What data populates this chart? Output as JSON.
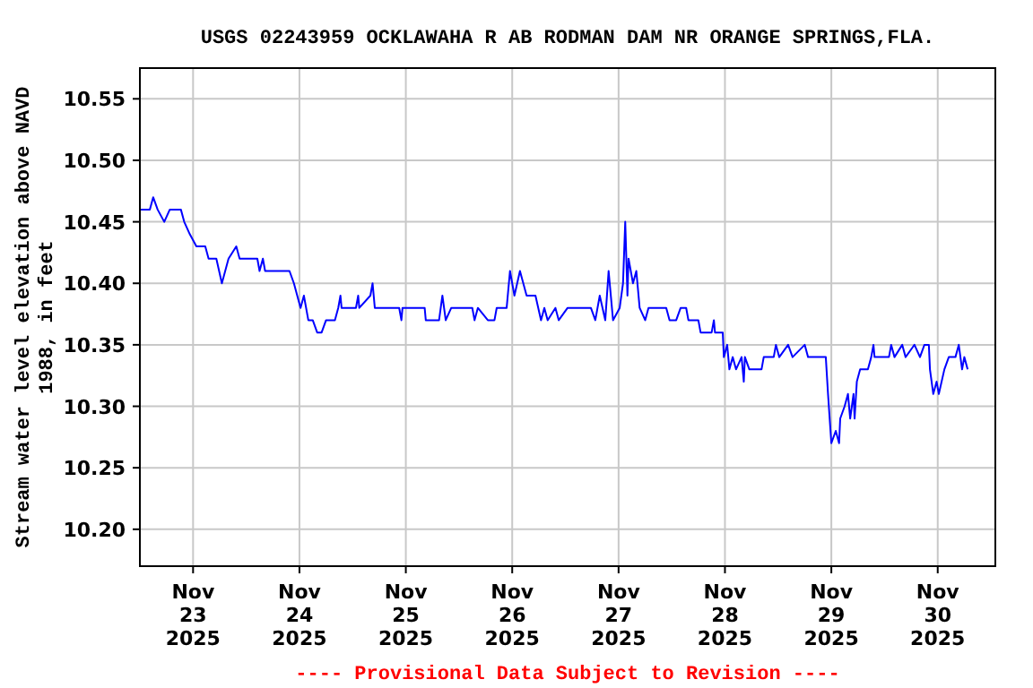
{
  "chart_data": {
    "type": "line",
    "title": "USGS 02243959 OCKLAWAHA R AB RODMAN DAM NR ORANGE SPRINGS,FLA.",
    "ylabel": "Stream water level elevation above NAVD\n1988, in feet",
    "annotations": [
      "---- Provisional Data Subject to Revision ----"
    ],
    "xlim": [
      "2025-11-22T12:00",
      "2025-11-30T13:00"
    ],
    "xticks": [
      {
        "value": "2025-11-23",
        "label": "Nov\n23\n2025"
      },
      {
        "value": "2025-11-24",
        "label": "Nov\n24\n2025"
      },
      {
        "value": "2025-11-25",
        "label": "Nov\n25\n2025"
      },
      {
        "value": "2025-11-26",
        "label": "Nov\n26\n2025"
      },
      {
        "value": "2025-11-27",
        "label": "Nov\n27\n2025"
      },
      {
        "value": "2025-11-28",
        "label": "Nov\n28\n2025"
      },
      {
        "value": "2025-11-29",
        "label": "Nov\n29\n2025"
      },
      {
        "value": "2025-11-30",
        "label": "Nov\n30\n2025"
      }
    ],
    "ylim": [
      10.17,
      10.575
    ],
    "yticks": [
      {
        "value": 10.2,
        "label": "10.20"
      },
      {
        "value": 10.25,
        "label": "10.25"
      },
      {
        "value": 10.3,
        "label": "10.30"
      },
      {
        "value": 10.35,
        "label": "10.35"
      },
      {
        "value": 10.4,
        "label": "10.40"
      },
      {
        "value": 10.45,
        "label": "10.45"
      },
      {
        "value": 10.5,
        "label": "10.50"
      },
      {
        "value": 10.55,
        "label": "10.55"
      }
    ],
    "grid": true,
    "line_style": "solid",
    "marker": "none",
    "x": [
      "2025-11-22T12:00",
      "2025-11-22T14:15",
      "2025-11-22T15:00",
      "2025-11-22T16:00",
      "2025-11-22T17:30",
      "2025-11-22T18:45",
      "2025-11-22T21:15",
      "2025-11-22T22:00",
      "2025-11-22T23:15",
      "2025-11-23T00:45",
      "2025-11-23T02:45",
      "2025-11-23T03:30",
      "2025-11-23T05:15",
      "2025-11-23T06:30",
      "2025-11-23T07:15",
      "2025-11-23T08:00",
      "2025-11-23T09:45",
      "2025-11-23T10:30",
      "2025-11-23T14:30",
      "2025-11-23T15:00",
      "2025-11-23T15:45",
      "2025-11-23T16:15",
      "2025-11-23T21:45",
      "2025-11-23T22:45",
      "2025-11-23T23:30",
      "2025-11-24T00:15",
      "2025-11-24T01:00",
      "2025-11-24T02:00",
      "2025-11-24T03:00",
      "2025-11-24T04:00",
      "2025-11-24T05:00",
      "2025-11-24T06:00",
      "2025-11-24T08:00",
      "2025-11-24T08:45",
      "2025-11-24T09:15",
      "2025-11-24T09:30",
      "2025-11-24T12:45",
      "2025-11-24T13:15",
      "2025-11-24T13:30",
      "2025-11-24T16:00",
      "2025-11-24T16:30",
      "2025-11-24T17:00",
      "2025-11-24T22:30",
      "2025-11-24T23:00",
      "2025-11-24T23:15",
      "2025-11-25T04:15",
      "2025-11-25T04:30",
      "2025-11-25T07:30",
      "2025-11-25T08:15",
      "2025-11-25T09:00",
      "2025-11-25T10:15",
      "2025-11-25T15:00",
      "2025-11-25T15:30",
      "2025-11-25T16:15",
      "2025-11-25T18:30",
      "2025-11-25T20:00",
      "2025-11-25T20:30",
      "2025-11-25T22:45",
      "2025-11-25T23:30",
      "2025-11-26T00:30",
      "2025-11-26T01:45",
      "2025-11-26T02:30",
      "2025-11-26T03:15",
      "2025-11-26T05:15",
      "2025-11-26T06:30",
      "2025-11-26T07:15",
      "2025-11-26T08:00",
      "2025-11-26T09:45",
      "2025-11-26T10:30",
      "2025-11-26T12:30",
      "2025-11-26T17:45",
      "2025-11-26T18:45",
      "2025-11-26T19:45",
      "2025-11-26T21:00",
      "2025-11-26T21:45",
      "2025-11-26T22:45",
      "2025-11-27T00:15",
      "2025-11-27T01:00",
      "2025-11-27T01:30",
      "2025-11-27T02:00",
      "2025-11-27T02:15",
      "2025-11-27T03:15",
      "2025-11-27T04:00",
      "2025-11-27T04:45",
      "2025-11-27T06:00",
      "2025-11-27T06:45",
      "2025-11-27T10:45",
      "2025-11-27T11:30",
      "2025-11-27T13:00",
      "2025-11-27T14:00",
      "2025-11-27T15:15",
      "2025-11-27T15:45",
      "2025-11-27T18:00",
      "2025-11-27T18:30",
      "2025-11-27T21:00",
      "2025-11-27T21:30",
      "2025-11-27T21:45",
      "2025-11-27T23:30",
      "2025-11-27T23:45",
      "2025-11-28T00:30",
      "2025-11-28T01:00",
      "2025-11-28T01:45",
      "2025-11-28T02:30",
      "2025-11-28T03:45",
      "2025-11-28T04:15",
      "2025-11-28T04:30",
      "2025-11-28T05:30",
      "2025-11-28T08:15",
      "2025-11-28T08:45",
      "2025-11-28T11:00",
      "2025-11-28T11:30",
      "2025-11-28T12:15",
      "2025-11-28T14:15",
      "2025-11-28T15:15",
      "2025-11-28T18:00",
      "2025-11-28T18:45",
      "2025-11-28T22:45",
      "2025-11-28T23:15",
      "2025-11-29T00:00",
      "2025-11-29T01:00",
      "2025-11-29T01:45",
      "2025-11-29T02:00",
      "2025-11-29T03:00",
      "2025-11-29T03:45",
      "2025-11-29T04:15",
      "2025-11-29T05:00",
      "2025-11-29T05:15",
      "2025-11-29T05:45",
      "2025-11-29T06:30",
      "2025-11-29T08:15",
      "2025-11-29T09:00",
      "2025-11-29T09:30",
      "2025-11-29T09:45",
      "2025-11-29T13:00",
      "2025-11-29T13:30",
      "2025-11-29T14:15",
      "2025-11-29T16:00",
      "2025-11-29T16:45",
      "2025-11-29T18:45",
      "2025-11-29T20:00",
      "2025-11-29T21:00",
      "2025-11-29T22:00",
      "2025-11-29T22:15",
      "2025-11-29T23:00",
      "2025-11-29T23:45",
      "2025-11-30T00:15",
      "2025-11-30T01:30",
      "2025-11-30T02:30",
      "2025-11-30T04:00",
      "2025-11-30T04:45",
      "2025-11-30T05:30",
      "2025-11-30T06:00",
      "2025-11-30T06:45"
    ],
    "series": [
      {
        "color": "#0000ff",
        "values": [
          10.46,
          10.46,
          10.47,
          10.46,
          10.45,
          10.46,
          10.46,
          10.45,
          10.44,
          10.43,
          10.43,
          10.42,
          10.42,
          10.4,
          10.41,
          10.42,
          10.43,
          10.42,
          10.42,
          10.41,
          10.42,
          10.41,
          10.41,
          10.4,
          10.39,
          10.38,
          10.39,
          10.37,
          10.37,
          10.36,
          10.36,
          10.37,
          10.37,
          10.38,
          10.39,
          10.38,
          10.38,
          10.39,
          10.38,
          10.39,
          10.4,
          10.38,
          10.38,
          10.37,
          10.38,
          10.38,
          10.37,
          10.37,
          10.39,
          10.37,
          10.38,
          10.38,
          10.37,
          10.38,
          10.37,
          10.37,
          10.38,
          10.38,
          10.41,
          10.39,
          10.41,
          10.4,
          10.39,
          10.39,
          10.37,
          10.38,
          10.37,
          10.38,
          10.37,
          10.38,
          10.38,
          10.37,
          10.39,
          10.37,
          10.41,
          10.37,
          10.38,
          10.4,
          10.45,
          10.39,
          10.42,
          10.4,
          10.41,
          10.38,
          10.37,
          10.38,
          10.38,
          10.37,
          10.37,
          10.38,
          10.38,
          10.37,
          10.37,
          10.36,
          10.36,
          10.37,
          10.36,
          10.36,
          10.34,
          10.35,
          10.33,
          10.34,
          10.33,
          10.34,
          10.32,
          10.34,
          10.33,
          10.33,
          10.34,
          10.34,
          10.35,
          10.34,
          10.35,
          10.34,
          10.35,
          10.34,
          10.34,
          10.31,
          10.27,
          10.28,
          10.27,
          10.29,
          10.3,
          10.31,
          10.29,
          10.31,
          10.29,
          10.32,
          10.33,
          10.33,
          10.34,
          10.35,
          10.34,
          10.34,
          10.35,
          10.34,
          10.35,
          10.34,
          10.35,
          10.34,
          10.35,
          10.35,
          10.33,
          10.31,
          10.32,
          10.31,
          10.33,
          10.34,
          10.34,
          10.35,
          10.33,
          10.34,
          10.33
        ]
      }
    ]
  }
}
